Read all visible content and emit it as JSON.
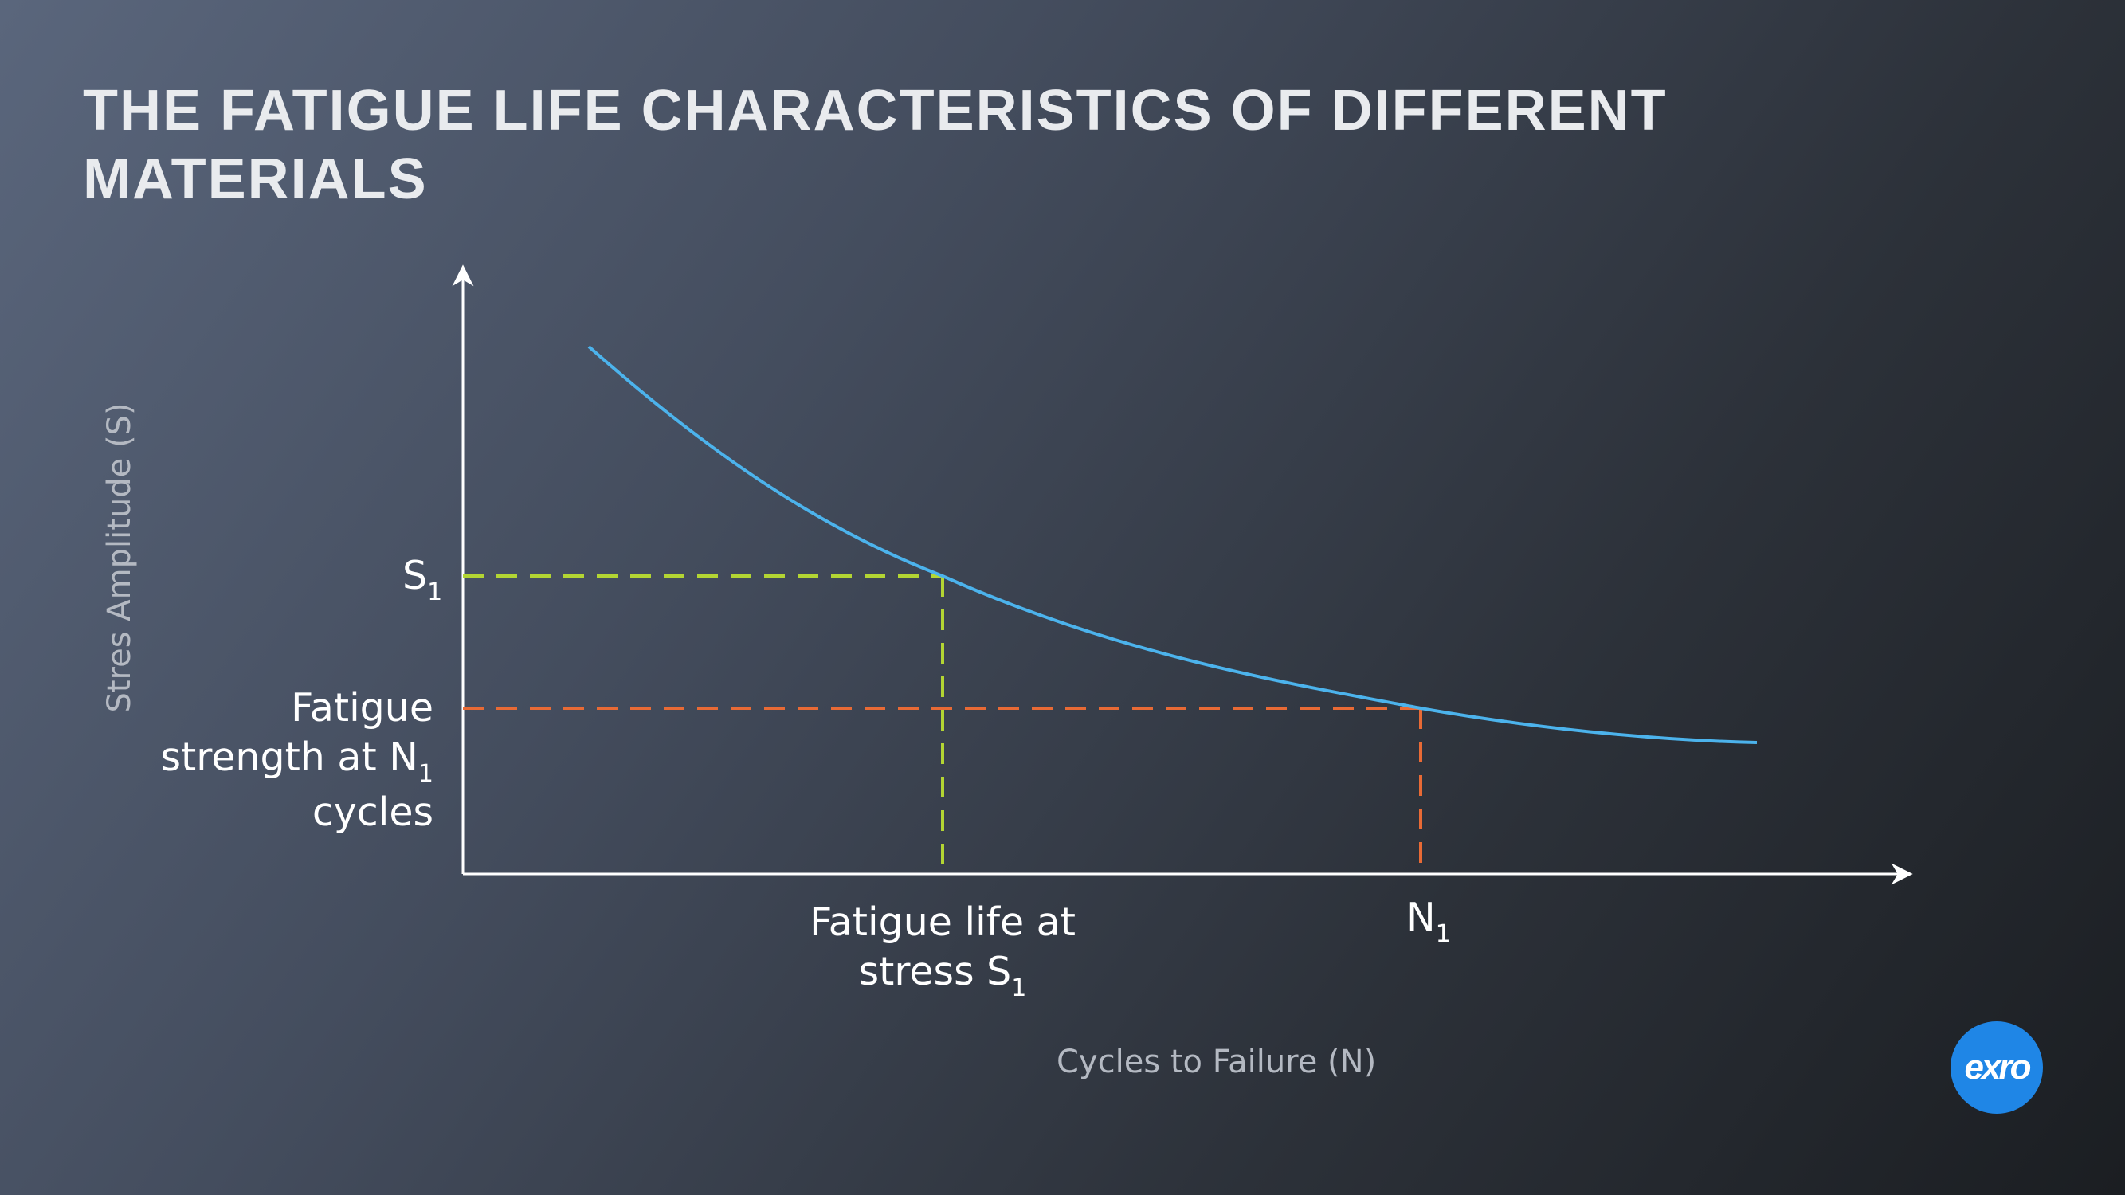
{
  "title": "THE FATIGUE LIFE CHARACTERISTICS OF DIFFERENT MATERIALS",
  "axes": {
    "y_title": "Stres Amplitude (S)",
    "x_title": "Cycles to Failure (N)"
  },
  "labels": {
    "s1": {
      "main": "S",
      "sub": "1"
    },
    "fatigue_strength": {
      "line1": "Fatigue",
      "line2_main": "strength at N",
      "line2_sub": "1",
      "line3": "cycles"
    },
    "fatigue_life": {
      "line1": "Fatigue life at",
      "line2_main": "stress S",
      "line2_sub": "1"
    },
    "n1": {
      "main": "N",
      "sub": "1"
    }
  },
  "logo": {
    "text": "exro"
  },
  "colors": {
    "curve": "#4cb3ec",
    "s1_guide": "#b3d533",
    "n1_guide": "#e86a35",
    "axis": "#ffffff",
    "logo_bg": "#1f86e6"
  }
}
